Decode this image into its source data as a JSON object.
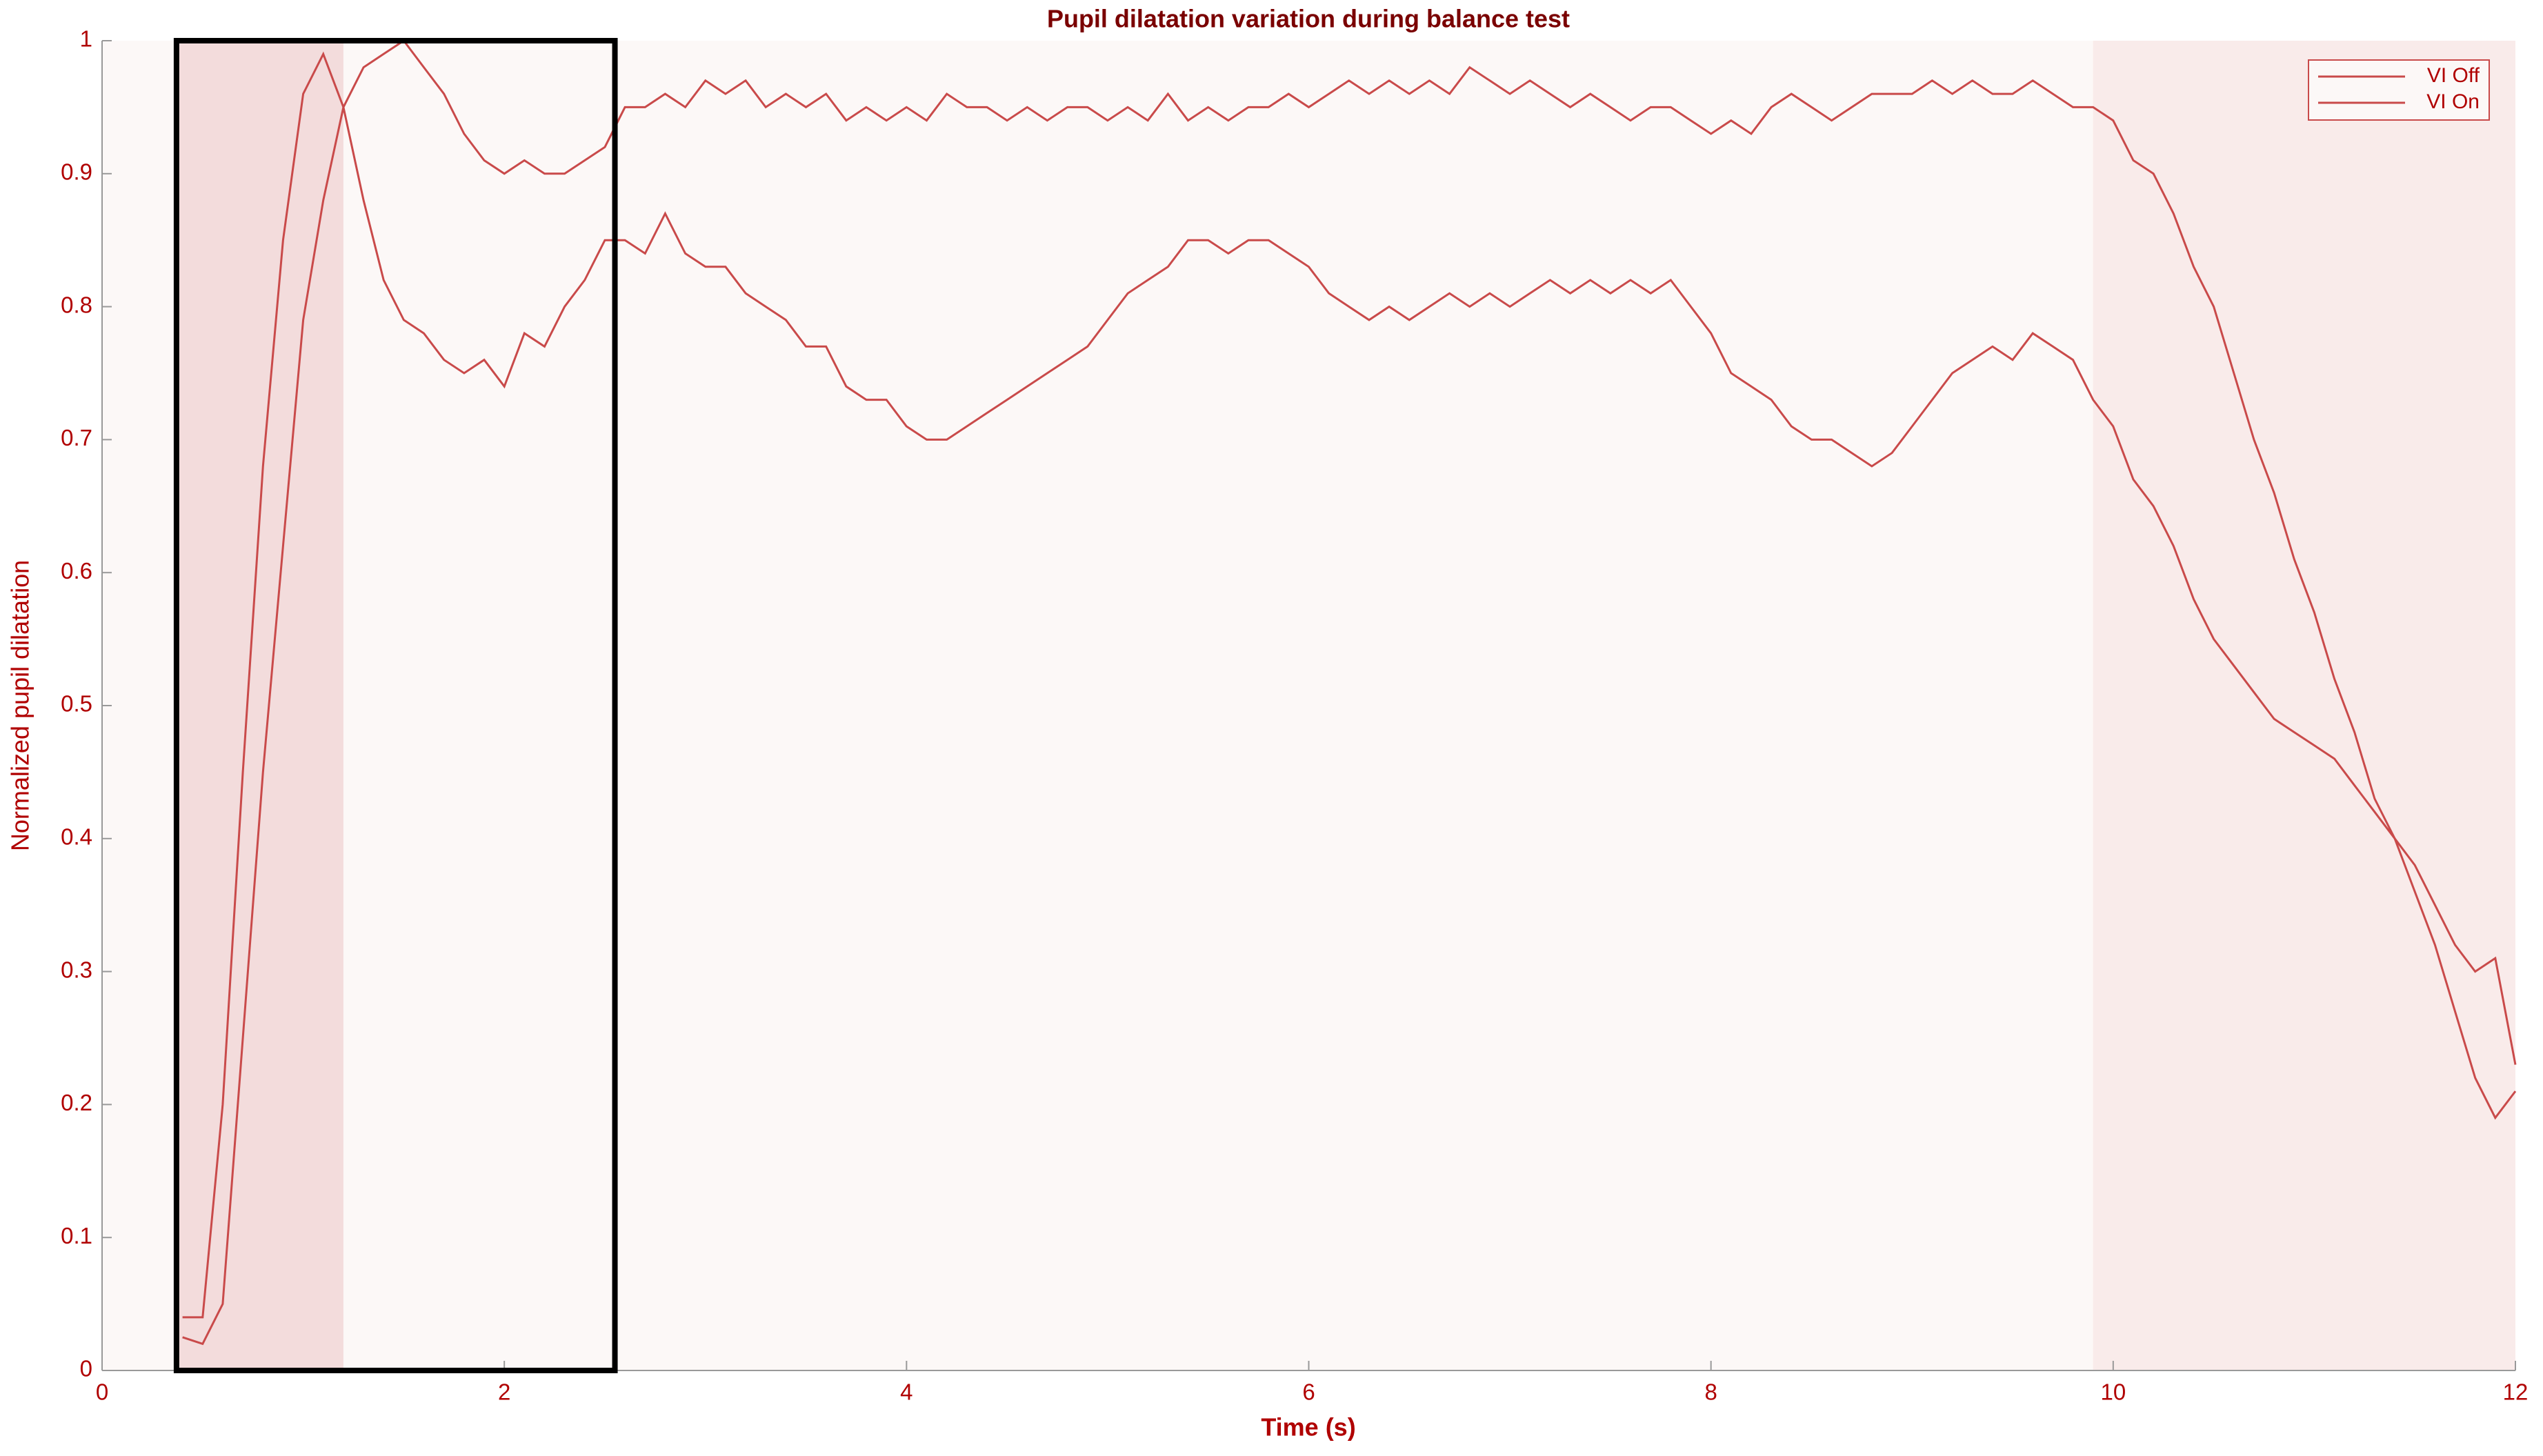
{
  "chart_data": {
    "type": "line",
    "title": "Pupil dilatation variation during balance test",
    "x_label": "Time (s)",
    "y_label": "Normalized pupil dilatation",
    "x": [
      0.4,
      0.5,
      0.6,
      0.7,
      0.8,
      0.9,
      1.0,
      1.1,
      1.2,
      1.3,
      1.4,
      1.5,
      1.6,
      1.7,
      1.8,
      1.9,
      2.0,
      2.1,
      2.2,
      2.3,
      2.4,
      2.5,
      2.6,
      2.7,
      2.8,
      2.9,
      3.0,
      3.1,
      3.2,
      3.3,
      3.4,
      3.5,
      3.6,
      3.7,
      3.8,
      3.9,
      4.0,
      4.1,
      4.2,
      4.3,
      4.4,
      4.5,
      4.6,
      4.7,
      4.8,
      4.9,
      5.0,
      5.1,
      5.2,
      5.3,
      5.4,
      5.5,
      5.6,
      5.7,
      5.8,
      5.9,
      6.0,
      6.1,
      6.2,
      6.3,
      6.4,
      6.5,
      6.6,
      6.7,
      6.8,
      6.9,
      7.0,
      7.1,
      7.2,
      7.3,
      7.4,
      7.5,
      7.6,
      7.7,
      7.8,
      7.9,
      8.0,
      8.1,
      8.2,
      8.3,
      8.4,
      8.5,
      8.6,
      8.7,
      8.8,
      8.9,
      9.0,
      9.1,
      9.2,
      9.3,
      9.4,
      9.5,
      9.6,
      9.7,
      9.8,
      9.9,
      10.0,
      10.1,
      10.2,
      10.3,
      10.4,
      10.5,
      10.6,
      10.7,
      10.8,
      10.9,
      11.0,
      11.1,
      11.2,
      11.3,
      11.4,
      11.5,
      11.6,
      11.7,
      11.8,
      11.9,
      12.0
    ],
    "series": [
      {
        "name": "VI Off",
        "color": "#c94a4a",
        "values": [
          0.025,
          0.02,
          0.05,
          0.25,
          0.45,
          0.62,
          0.79,
          0.88,
          0.95,
          0.98,
          0.99,
          1.0,
          0.98,
          0.96,
          0.93,
          0.91,
          0.9,
          0.91,
          0.9,
          0.9,
          0.91,
          0.92,
          0.95,
          0.95,
          0.96,
          0.95,
          0.97,
          0.96,
          0.97,
          0.95,
          0.96,
          0.95,
          0.96,
          0.94,
          0.95,
          0.94,
          0.95,
          0.94,
          0.96,
          0.95,
          0.95,
          0.94,
          0.95,
          0.94,
          0.95,
          0.95,
          0.94,
          0.95,
          0.94,
          0.96,
          0.94,
          0.95,
          0.94,
          0.95,
          0.95,
          0.96,
          0.95,
          0.96,
          0.97,
          0.96,
          0.97,
          0.96,
          0.97,
          0.96,
          0.98,
          0.97,
          0.96,
          0.97,
          0.96,
          0.95,
          0.96,
          0.95,
          0.94,
          0.95,
          0.95,
          0.94,
          0.93,
          0.94,
          0.93,
          0.95,
          0.96,
          0.95,
          0.94,
          0.95,
          0.96,
          0.96,
          0.96,
          0.97,
          0.96,
          0.97,
          0.96,
          0.96,
          0.97,
          0.96,
          0.95,
          0.95,
          0.94,
          0.91,
          0.9,
          0.87,
          0.83,
          0.8,
          0.75,
          0.7,
          0.66,
          0.61,
          0.57,
          0.52,
          0.48,
          0.43,
          0.4,
          0.36,
          0.32,
          0.27,
          0.22,
          0.19,
          0.21
        ]
      },
      {
        "name": "VI On",
        "color": "#c94a4a",
        "values": [
          0.04,
          0.04,
          0.2,
          0.45,
          0.68,
          0.85,
          0.96,
          0.99,
          0.95,
          0.88,
          0.82,
          0.79,
          0.78,
          0.76,
          0.75,
          0.76,
          0.74,
          0.78,
          0.77,
          0.8,
          0.82,
          0.85,
          0.85,
          0.84,
          0.87,
          0.84,
          0.83,
          0.83,
          0.81,
          0.8,
          0.79,
          0.77,
          0.77,
          0.74,
          0.73,
          0.73,
          0.71,
          0.7,
          0.7,
          0.71,
          0.72,
          0.73,
          0.74,
          0.75,
          0.76,
          0.77,
          0.79,
          0.81,
          0.82,
          0.83,
          0.85,
          0.85,
          0.84,
          0.85,
          0.85,
          0.84,
          0.83,
          0.81,
          0.8,
          0.79,
          0.8,
          0.79,
          0.8,
          0.81,
          0.8,
          0.81,
          0.8,
          0.81,
          0.82,
          0.81,
          0.82,
          0.81,
          0.82,
          0.81,
          0.82,
          0.8,
          0.78,
          0.75,
          0.74,
          0.73,
          0.71,
          0.7,
          0.7,
          0.69,
          0.68,
          0.69,
          0.71,
          0.73,
          0.75,
          0.76,
          0.77,
          0.76,
          0.78,
          0.77,
          0.76,
          0.73,
          0.71,
          0.67,
          0.65,
          0.62,
          0.58,
          0.55,
          0.53,
          0.51,
          0.49,
          0.48,
          0.47,
          0.46,
          0.44,
          0.42,
          0.4,
          0.38,
          0.35,
          0.32,
          0.3,
          0.31,
          0.23
        ]
      }
    ],
    "shaded_spans": [
      {
        "x": [
          0.37,
          1.2
        ],
        "color": "#f3dcdc"
      },
      {
        "x": [
          9.9,
          12
        ],
        "color": "#f9ebea"
      }
    ],
    "highlight_box": {
      "x": [
        0.37,
        2.55
      ],
      "color": "#000000"
    },
    "xlim": [
      0,
      12
    ],
    "ylim": [
      0,
      1
    ],
    "xticks": [
      0,
      2,
      4,
      6,
      8,
      10,
      12
    ],
    "yticks": [
      0,
      0.1,
      0.2,
      0.3,
      0.4,
      0.5,
      0.6,
      0.7,
      0.8,
      0.9,
      1
    ],
    "legend": "upper right"
  }
}
